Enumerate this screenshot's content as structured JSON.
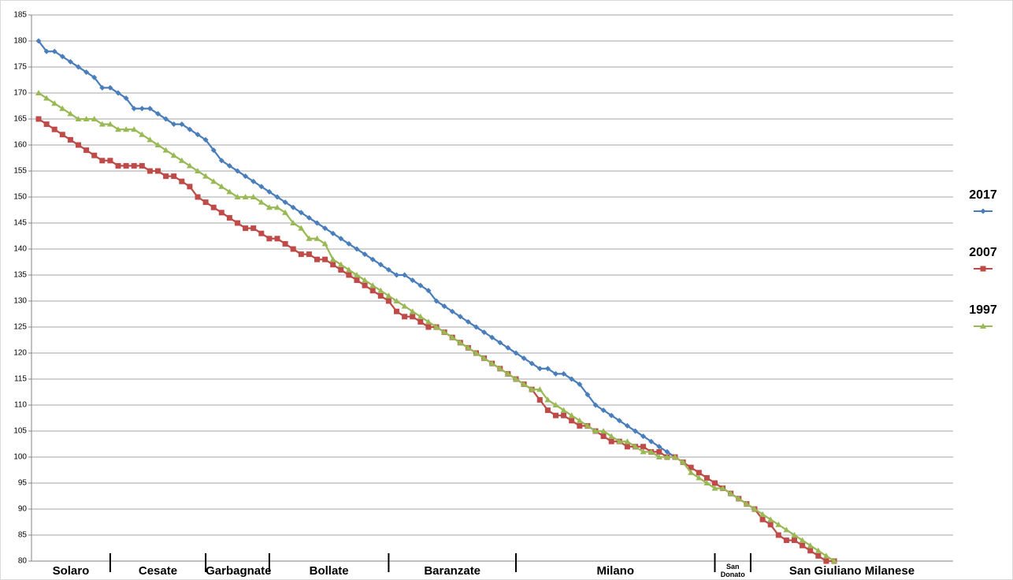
{
  "chart_data": {
    "type": "line",
    "series": [
      {
        "name": "2017",
        "color": "#4a7ebb",
        "marker": "diamond",
        "values": [
          180,
          178,
          178,
          177,
          176,
          175,
          174,
          173,
          171,
          171,
          170,
          169,
          167,
          167,
          167,
          166,
          165,
          164,
          164,
          163,
          162,
          161,
          159,
          157,
          156,
          155,
          154,
          153,
          152,
          151,
          150,
          149,
          148,
          147,
          146,
          145,
          144,
          143,
          142,
          141,
          140,
          139,
          138,
          137,
          136,
          135,
          135,
          134,
          133,
          132,
          130,
          129,
          128,
          127,
          126,
          125,
          124,
          123,
          122,
          121,
          120,
          119,
          118,
          117,
          117,
          116,
          116,
          115,
          114,
          112,
          110,
          109,
          108,
          107,
          106,
          105,
          104,
          103,
          102,
          101,
          100,
          null,
          null,
          null,
          null,
          null,
          null,
          null,
          null,
          null,
          null,
          null,
          null,
          null,
          null,
          null,
          null,
          null,
          null,
          null,
          null
        ]
      },
      {
        "name": "2007",
        "color": "#be4b48",
        "marker": "square",
        "values": [
          165,
          164,
          163,
          162,
          161,
          160,
          159,
          158,
          157,
          157,
          156,
          156,
          156,
          156,
          155,
          155,
          154,
          154,
          153,
          152,
          150,
          149,
          148,
          147,
          146,
          145,
          144,
          144,
          143,
          142,
          142,
          141,
          140,
          139,
          139,
          138,
          138,
          137,
          136,
          135,
          134,
          133,
          132,
          131,
          130,
          128,
          127,
          127,
          126,
          125,
          125,
          124,
          123,
          122,
          121,
          120,
          119,
          118,
          117,
          116,
          115,
          114,
          113,
          111,
          109,
          108,
          108,
          107,
          106,
          106,
          105,
          104,
          103,
          103,
          102,
          102,
          102,
          101,
          101,
          100,
          100,
          99,
          98,
          97,
          96,
          95,
          94,
          93,
          92,
          91,
          90,
          88,
          87,
          85,
          84,
          84,
          83,
          82,
          81,
          80,
          80
        ]
      },
      {
        "name": "1997",
        "color": "#98b954",
        "marker": "triangle",
        "values": [
          170,
          169,
          168,
          167,
          166,
          165,
          165,
          165,
          164,
          164,
          163,
          163,
          163,
          162,
          161,
          160,
          159,
          158,
          157,
          156,
          155,
          154,
          153,
          152,
          151,
          150,
          150,
          150,
          149,
          148,
          148,
          147,
          145,
          144,
          142,
          142,
          141,
          138,
          137,
          136,
          135,
          134,
          133,
          132,
          131,
          130,
          129,
          128,
          127,
          126,
          125,
          124,
          123,
          122,
          121,
          120,
          119,
          118,
          117,
          116,
          115,
          114,
          113,
          113,
          111,
          110,
          109,
          108,
          107,
          106,
          105,
          105,
          104,
          103,
          103,
          102,
          101,
          101,
          100,
          100,
          100,
          99,
          97,
          96,
          95,
          94,
          94,
          93,
          92,
          91,
          90,
          89,
          88,
          87,
          86,
          85,
          84,
          83,
          82,
          81,
          80
        ]
      }
    ],
    "ylim": [
      80,
      185
    ],
    "yticks": [
      80,
      85,
      90,
      95,
      100,
      105,
      110,
      115,
      120,
      125,
      130,
      135,
      140,
      145,
      150,
      155,
      160,
      165,
      170,
      175,
      180,
      185
    ],
    "grid": true,
    "legend": "right",
    "x_group_boundaries": [
      9,
      21,
      29,
      44,
      60,
      85,
      89.5
    ],
    "x_group_labels": [
      "Solaro",
      "Cesate",
      "Garbagnate",
      "Bollate",
      "Baranzate",
      "Milano",
      "San Donato",
      "San Giuliano Milanese"
    ]
  }
}
